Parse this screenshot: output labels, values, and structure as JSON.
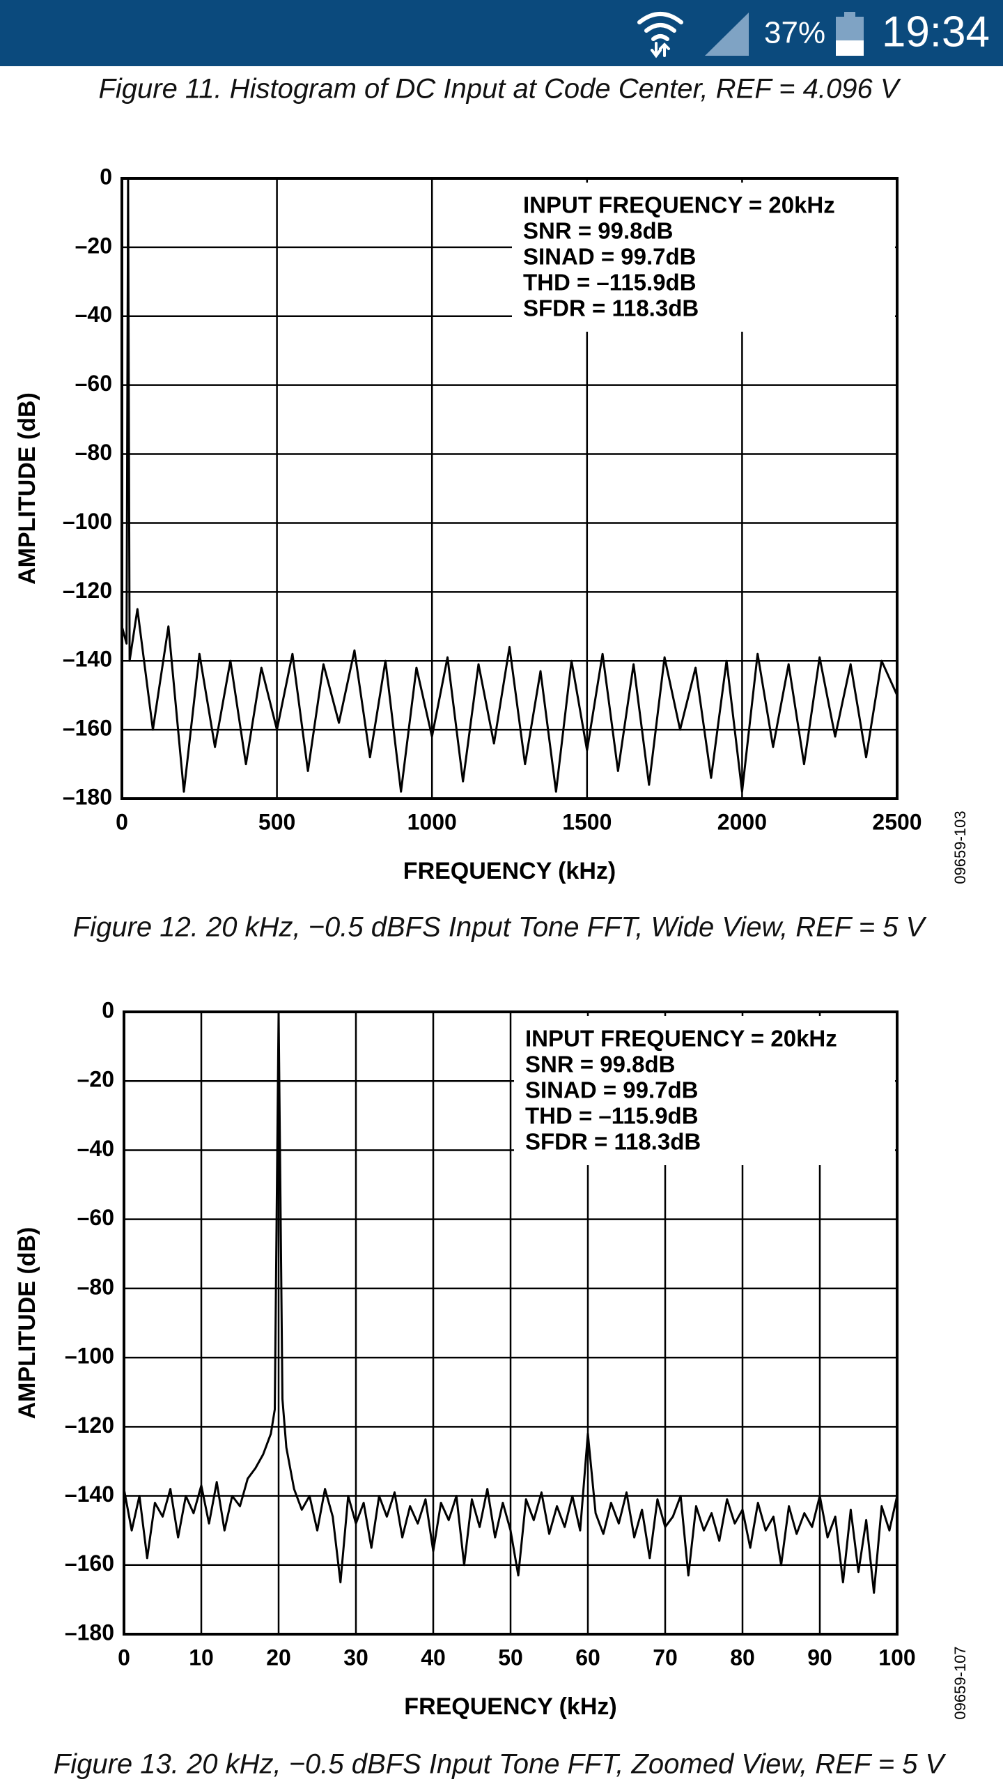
{
  "status_bar": {
    "battery": "37%",
    "time": "19:34"
  },
  "header_caption": "Figure 11. Histogram of DC Input at Code Center, REF = 4.096 V",
  "chart_data": [
    {
      "type": "line",
      "title": "Figure 12. 20 kHz, −0.5 dBFS Input Tone FFT, Wide View, REF = 5 V",
      "xlabel": "FREQUENCY (kHz)",
      "ylabel": "AMPLITUDE (dB)",
      "code": "09659-103",
      "annotations": [
        "INPUT FREQUENCY = 20kHz",
        "SNR = 99.8dB",
        "SINAD = 99.7dB",
        "THD = –115.9dB",
        "SFDR = 118.3dB"
      ],
      "xlim": [
        0,
        2500
      ],
      "xticks": [
        0,
        500,
        1000,
        1500,
        2000,
        2500
      ],
      "ylim": [
        -180,
        0
      ],
      "yticks": [
        0,
        {
          "value": -20,
          "label": "–20"
        },
        {
          "value": -40,
          "label": "–40"
        },
        {
          "value": -60,
          "label": "–60"
        },
        {
          "value": -80,
          "label": "–80"
        },
        {
          "value": -100,
          "label": "–100"
        },
        {
          "value": -120,
          "label": "–120"
        },
        {
          "value": -140,
          "label": "–140"
        },
        {
          "value": -160,
          "label": "–160"
        },
        {
          "value": -180,
          "label": "–180"
        }
      ],
      "grid": true,
      "color": "#000000",
      "x": [
        0,
        15,
        20,
        25,
        50,
        100,
        150,
        200,
        250,
        300,
        350,
        400,
        450,
        500,
        550,
        600,
        650,
        700,
        750,
        800,
        850,
        900,
        950,
        1000,
        1050,
        1100,
        1150,
        1200,
        1250,
        1300,
        1350,
        1400,
        1450,
        1500,
        1550,
        1600,
        1650,
        1700,
        1750,
        1800,
        1850,
        1900,
        1950,
        2000,
        2050,
        2100,
        2150,
        2200,
        2250,
        2300,
        2350,
        2400,
        2450,
        2500
      ],
      "values": [
        -130,
        -135,
        -0.5,
        -140,
        -125,
        -160,
        -130,
        -178,
        -138,
        -165,
        -140,
        -170,
        -142,
        -160,
        -138,
        -172,
        -141,
        -158,
        -137,
        -168,
        -140,
        -178,
        -142,
        -162,
        -139,
        -175,
        -141,
        -164,
        -136,
        -170,
        -143,
        -178,
        -140,
        -166,
        -138,
        -172,
        -141,
        -176,
        -139,
        -160,
        -142,
        -174,
        -140,
        -178,
        -138,
        -165,
        -141,
        -170,
        -139,
        -162,
        -141,
        -168,
        -140,
        -150
      ]
    },
    {
      "type": "line",
      "title": "Figure 13. 20 kHz, −0.5 dBFS Input Tone FFT, Zoomed View, REF = 5 V",
      "xlabel": "FREQUENCY (kHz)",
      "ylabel": "AMPLITUDE (dB)",
      "code": "09659-107",
      "annotations": [
        "INPUT FREQUENCY = 20kHz",
        "SNR = 99.8dB",
        "SINAD = 99.7dB",
        "THD = –115.9dB",
        "SFDR = 118.3dB"
      ],
      "xlim": [
        0,
        100
      ],
      "xticks": [
        0,
        10,
        20,
        30,
        40,
        50,
        60,
        70,
        80,
        90,
        100
      ],
      "ylim": [
        -180,
        0
      ],
      "yticks": [
        0,
        {
          "value": -20,
          "label": "–20"
        },
        {
          "value": -40,
          "label": "–40"
        },
        {
          "value": -60,
          "label": "–60"
        },
        {
          "value": -80,
          "label": "–80"
        },
        {
          "value": -100,
          "label": "–100"
        },
        {
          "value": -120,
          "label": "–120"
        },
        {
          "value": -140,
          "label": "–140"
        },
        {
          "value": -160,
          "label": "–160"
        },
        {
          "value": -180,
          "label": "–180"
        }
      ],
      "grid": true,
      "color": "#000000",
      "x": [
        0,
        1,
        2,
        3,
        4,
        5,
        6,
        7,
        8,
        9,
        10,
        11,
        12,
        13,
        14,
        15,
        16,
        17,
        18,
        19,
        19.5,
        20,
        20.5,
        21,
        22,
        23,
        24,
        25,
        26,
        27,
        28,
        29,
        30,
        31,
        32,
        33,
        34,
        35,
        36,
        37,
        38,
        39,
        40,
        41,
        42,
        43,
        44,
        45,
        46,
        47,
        48,
        49,
        50,
        51,
        52,
        53,
        54,
        55,
        56,
        57,
        58,
        59,
        60,
        61,
        62,
        63,
        64,
        65,
        66,
        67,
        68,
        69,
        70,
        71,
        72,
        73,
        74,
        75,
        76,
        77,
        78,
        79,
        80,
        81,
        82,
        83,
        84,
        85,
        86,
        87,
        88,
        89,
        90,
        91,
        92,
        93,
        94,
        95,
        96,
        97,
        98,
        99,
        100
      ],
      "values": [
        -138,
        -150,
        -140,
        -158,
        -142,
        -146,
        -138,
        -152,
        -140,
        -145,
        -137,
        -148,
        -136,
        -150,
        -140,
        -143,
        -135,
        -132,
        -128,
        -122,
        -115,
        -0.5,
        -112,
        -126,
        -138,
        -144,
        -140,
        -150,
        -138,
        -146,
        -165,
        -140,
        -148,
        -142,
        -155,
        -140,
        -146,
        -139,
        -152,
        -143,
        -148,
        -141,
        -156,
        -142,
        -147,
        -140,
        -160,
        -141,
        -149,
        -138,
        -152,
        -142,
        -150,
        -163,
        -141,
        -147,
        -139,
        -151,
        -143,
        -149,
        -140,
        -150,
        -122,
        -145,
        -151,
        -142,
        -148,
        -139,
        -152,
        -144,
        -158,
        -141,
        -149,
        -146,
        -140,
        -163,
        -143,
        -150,
        -145,
        -153,
        -141,
        -148,
        -144,
        -155,
        -142,
        -150,
        -146,
        -160,
        -143,
        -151,
        -145,
        -149,
        -140,
        -152,
        -146,
        -165,
        -144,
        -162,
        -147,
        -168,
        -143,
        -150,
        -140
      ]
    }
  ]
}
